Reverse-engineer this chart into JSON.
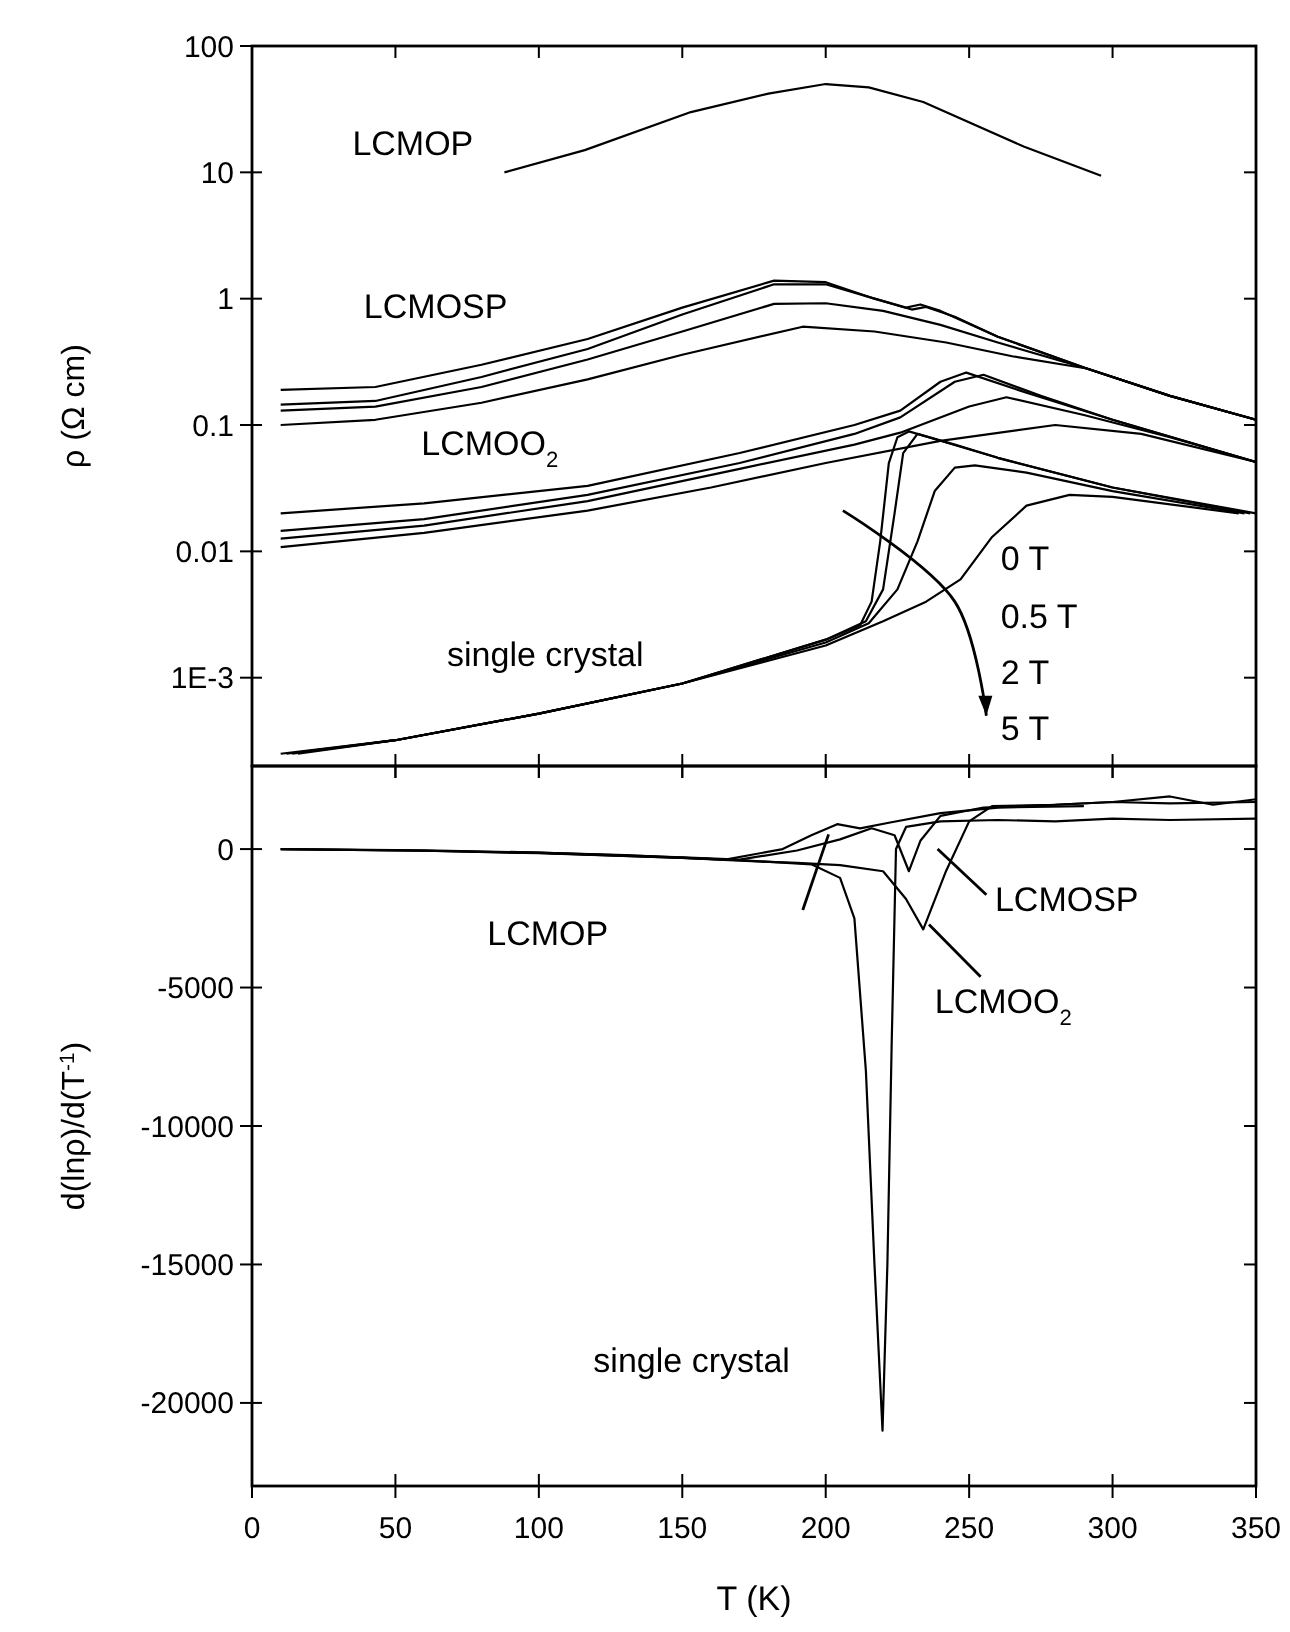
{
  "chart_data": [
    {
      "type": "line",
      "ylabel": "ρ (Ω cm)",
      "log": true,
      "xlim": [
        0,
        350
      ],
      "xticks": [
        0,
        50,
        100,
        150,
        200,
        250,
        300,
        350
      ],
      "ylim": [
        0.0002,
        100
      ],
      "yticks": [
        100,
        10,
        1,
        0.1,
        0.01,
        {
          "value": 0.001,
          "label": "1E-3"
        }
      ],
      "tick_labels": "y",
      "series": [
        {
          "color": "#000000",
          "x": [
            88,
            116,
            153,
            180,
            200,
            215,
            234,
            269,
            296
          ],
          "values": [
            10,
            15,
            30,
            42,
            50,
            47,
            36,
            16,
            9.4
          ]
        },
        {
          "color": "#000000",
          "x": [
            10,
            43,
            80,
            117,
            150,
            182,
            200,
            217,
            228,
            233,
            240,
            260,
            291,
            320,
            350
          ],
          "values": [
            0.19,
            0.2,
            0.3,
            0.48,
            0.85,
            1.39,
            1.35,
            1,
            0.85,
            0.9,
            0.8,
            0.5,
            0.28,
            0.17,
            0.11
          ]
        },
        {
          "color": "#000000",
          "x": [
            10,
            43,
            80,
            117,
            150,
            182,
            200,
            217,
            230,
            235,
            245,
            260,
            291,
            320,
            350
          ],
          "values": [
            0.145,
            0.155,
            0.24,
            0.4,
            0.75,
            1.3,
            1.3,
            1,
            0.82,
            0.86,
            0.72,
            0.5,
            0.28,
            0.17,
            0.11
          ]
        },
        {
          "color": "#000000",
          "x": [
            10,
            43,
            80,
            117,
            150,
            182,
            200,
            220,
            240,
            260,
            291,
            320,
            350
          ],
          "values": [
            0.13,
            0.14,
            0.2,
            0.33,
            0.55,
            0.91,
            0.92,
            0.8,
            0.62,
            0.45,
            0.28,
            0.17,
            0.11
          ]
        },
        {
          "color": "#000000",
          "x": [
            10,
            43,
            80,
            117,
            150,
            192,
            217,
            242,
            265,
            291,
            320,
            350
          ],
          "values": [
            0.1,
            0.11,
            0.15,
            0.23,
            0.36,
            0.6,
            0.55,
            0.45,
            0.35,
            0.28,
            0.17,
            0.11
          ]
        },
        {
          "color": "#000000",
          "x": [
            10,
            60,
            117,
            170,
            210,
            226,
            240,
            249,
            270,
            300,
            350
          ],
          "values": [
            0.02,
            0.024,
            0.033,
            0.06,
            0.1,
            0.13,
            0.22,
            0.26,
            0.18,
            0.11,
            0.051
          ]
        },
        {
          "color": "#000000",
          "x": [
            10,
            60,
            117,
            170,
            210,
            226,
            245,
            255,
            275,
            300,
            350
          ],
          "values": [
            0.0145,
            0.018,
            0.028,
            0.05,
            0.085,
            0.115,
            0.22,
            0.25,
            0.17,
            0.11,
            0.051
          ]
        },
        {
          "color": "#000000",
          "x": [
            10,
            60,
            117,
            170,
            210,
            226,
            250,
            263,
            290,
            320,
            350
          ],
          "values": [
            0.0126,
            0.016,
            0.025,
            0.045,
            0.07,
            0.087,
            0.14,
            0.166,
            0.12,
            0.08,
            0.051
          ]
        },
        {
          "color": "#000000",
          "x": [
            10,
            60,
            117,
            160,
            200,
            240,
            280,
            310,
            350
          ],
          "values": [
            0.0108,
            0.014,
            0.021,
            0.032,
            0.05,
            0.075,
            0.1,
            0.085,
            0.051
          ]
        },
        {
          "color": "#000000",
          "x": [
            10,
            50,
            100,
            150,
            200,
            212,
            216,
            219,
            222,
            225,
            229,
            240,
            260,
            300,
            350
          ],
          "values": [
            0.00025,
            0.00032,
            0.00052,
            0.0009,
            0.002,
            0.0026,
            0.004,
            0.012,
            0.05,
            0.08,
            0.089,
            0.075,
            0.055,
            0.032,
            0.02
          ]
        },
        {
          "color": "#000000",
          "x": [
            12,
            50,
            100,
            150,
            200,
            214,
            220,
            224,
            227,
            232,
            245,
            260,
            300,
            348
          ],
          "values": [
            0.00025,
            0.00032,
            0.00052,
            0.0009,
            0.002,
            0.0028,
            0.005,
            0.02,
            0.06,
            0.085,
            0.07,
            0.055,
            0.032,
            0.02
          ]
        },
        {
          "color": "#000000",
          "x": [
            14,
            50,
            100,
            150,
            200,
            215,
            225,
            232,
            238,
            245,
            252,
            270,
            300,
            346
          ],
          "values": [
            0.00025,
            0.00032,
            0.00052,
            0.0009,
            0.0019,
            0.0027,
            0.005,
            0.012,
            0.03,
            0.046,
            0.048,
            0.042,
            0.03,
            0.02
          ]
        },
        {
          "color": "#000000",
          "x": [
            16,
            50,
            100,
            150,
            200,
            220,
            235,
            247,
            258,
            270,
            285,
            300,
            344
          ],
          "values": [
            0.00025,
            0.00032,
            0.00052,
            0.0009,
            0.0018,
            0.0028,
            0.004,
            0.006,
            0.013,
            0.023,
            0.028,
            0.027,
            0.02
          ]
        }
      ],
      "annotations": [
        "LCMOP",
        "LCMOSP",
        "LCMOO$_{2}$",
        "single crystal",
        "0 T",
        "0.5 T",
        "2 T",
        "5 T"
      ]
    },
    {
      "type": "line",
      "xlabel": "T (K)",
      "ylabel": "d(lnρ)/d(T$^{-1}$)",
      "xlim": [
        0,
        350
      ],
      "xticks": [
        0,
        50,
        100,
        150,
        200,
        250,
        300,
        350
      ],
      "ylim": [
        -23000,
        3000
      ],
      "yticks": [
        0,
        -5000,
        -10000,
        -15000,
        -20000
      ],
      "series": [
        {
          "color": "#000000",
          "x": [
            90,
            130,
            165,
            185,
            195,
            204,
            212,
            222,
            240,
            260,
            290
          ],
          "values": [
            -100,
            -220,
            -380,
            0,
            500,
            900,
            750,
            950,
            1300,
            1500,
            1550
          ]
        },
        {
          "color": "#000000",
          "x": [
            10,
            60,
            100,
            150,
            170,
            190,
            205,
            216,
            224,
            229,
            233,
            240,
            255,
            280,
            300,
            320,
            350
          ],
          "values": [
            0,
            -50,
            -130,
            -300,
            -380,
            -50,
            350,
            750,
            500,
            -800,
            300,
            1200,
            1500,
            1600,
            1700,
            1650,
            1700
          ]
        },
        {
          "color": "#000000",
          "x": [
            10,
            60,
            100,
            150,
            170,
            190,
            205,
            220,
            228,
            234,
            242,
            250,
            258,
            280,
            300,
            320,
            335,
            350
          ],
          "values": [
            0,
            -60,
            -140,
            -320,
            -420,
            -500,
            -580,
            -800,
            -1800,
            -2900,
            -780,
            1000,
            1550,
            1600,
            1700,
            1900,
            1600,
            1800
          ]
        },
        {
          "color": "#000000",
          "x": [
            10,
            60,
            100,
            150,
            170,
            195,
            205,
            210,
            214,
            217,
            219.8,
            221.5,
            223,
            224.5,
            228,
            240,
            260,
            280,
            300,
            320,
            350
          ],
          "values": [
            0,
            -60,
            -150,
            -320,
            -400,
            -550,
            -1040,
            -2500,
            -8000,
            -15000,
            -21000,
            -15000,
            -7000,
            0,
            800,
            1000,
            1050,
            1000,
            1100,
            1050,
            1100
          ]
        }
      ],
      "annotations": [
        "LCMOP",
        "LCMOSP",
        "LCMOO$_{2}$",
        "single crystal"
      ]
    }
  ]
}
